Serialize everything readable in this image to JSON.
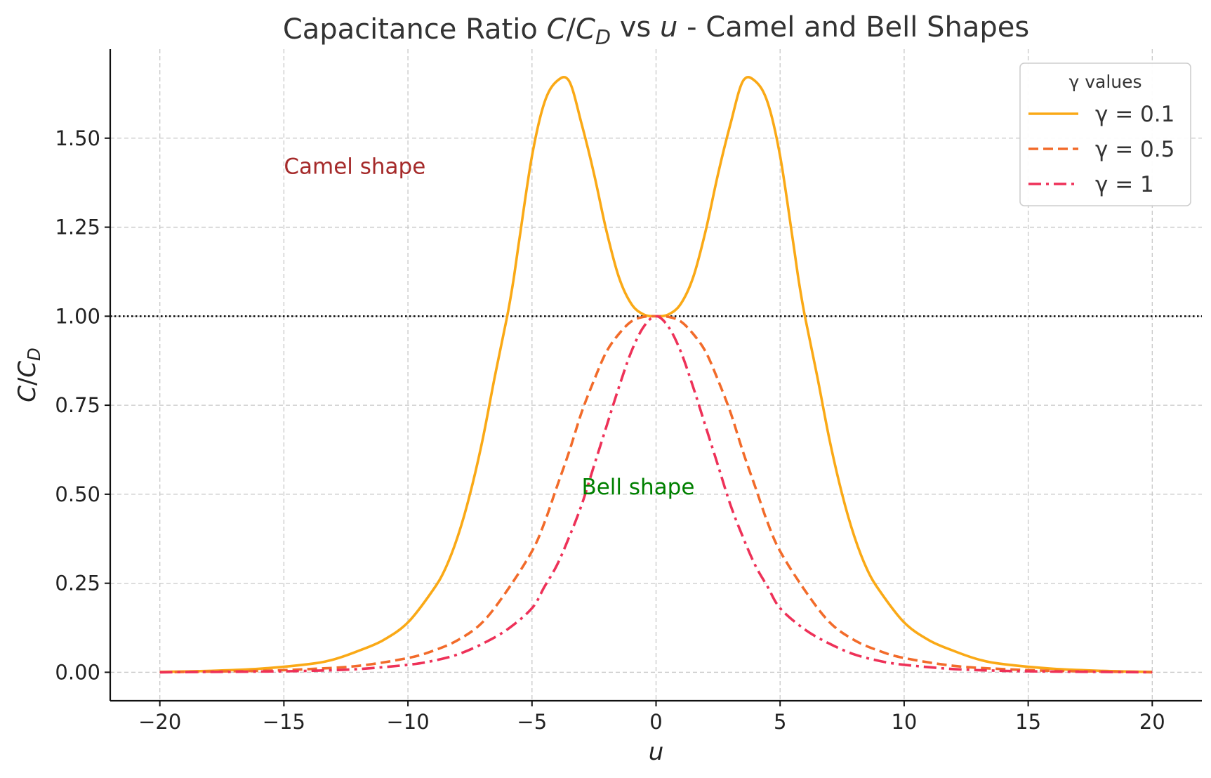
{
  "chart_data": {
    "type": "line",
    "title_parts": [
      {
        "text": "Capacitance Ratio ",
        "italic": false
      },
      {
        "text": "C",
        "italic": true
      },
      {
        "text": "/",
        "italic": false
      },
      {
        "text": "C",
        "italic": true
      },
      {
        "text": "D",
        "italic": true,
        "sub": true
      },
      {
        "text": " vs ",
        "italic": false
      },
      {
        "text": "u",
        "italic": true
      },
      {
        "text": " - Camel and Bell Shapes",
        "italic": false
      }
    ],
    "xlabel": "u",
    "ylabel_parts": [
      {
        "text": "C",
        "italic": true
      },
      {
        "text": "/",
        "italic": false
      },
      {
        "text": "C",
        "italic": true
      },
      {
        "text": "D",
        "italic": true,
        "sub": true
      }
    ],
    "xlim": [
      -22,
      22
    ],
    "ylim": [
      -0.08,
      1.75
    ],
    "x_ticks": [
      -20,
      -15,
      -10,
      -5,
      0,
      5,
      10,
      15,
      20
    ],
    "x_tick_labels": [
      "−20",
      "−15",
      "−10",
      "−5",
      "0",
      "5",
      "10",
      "15",
      "20"
    ],
    "y_ticks": [
      0,
      0.25,
      0.5,
      0.75,
      1.0,
      1.25,
      1.5
    ],
    "y_tick_labels": [
      "0.00",
      "0.25",
      "0.50",
      "0.75",
      "1.00",
      "1.25",
      "1.50"
    ],
    "grid": true,
    "reference_line": {
      "y": 1.0,
      "style": "dotted",
      "color": "#000000"
    },
    "legend": {
      "title": "γ values",
      "placement": "top-right"
    },
    "series": [
      {
        "name": "γ = 0.1",
        "color": "#FAA916",
        "line_style": "solid",
        "x": [
          -20,
          -18,
          -16,
          -14,
          -13,
          -12,
          -11,
          -10,
          -9,
          -8.5,
          -8,
          -7.5,
          -7,
          -6.5,
          -6,
          -5.75,
          -5.5,
          -5,
          -4.5,
          -4,
          -3.5,
          -3,
          -2.5,
          -2,
          -1.5,
          -1,
          -0.5,
          0,
          0.5,
          1,
          1.5,
          2,
          2.5,
          3,
          3.5,
          4,
          4.5,
          5,
          5.5,
          5.75,
          6,
          6.5,
          7,
          7.5,
          8,
          8.5,
          9,
          10,
          11,
          12,
          13,
          14,
          16,
          18,
          20
        ],
        "y": [
          0.001,
          0.004,
          0.01,
          0.023,
          0.036,
          0.06,
          0.09,
          0.14,
          0.23,
          0.29,
          0.38,
          0.5,
          0.65,
          0.83,
          1.0,
          1.1,
          1.22,
          1.45,
          1.6,
          1.66,
          1.66,
          1.54,
          1.4,
          1.24,
          1.11,
          1.035,
          1.005,
          1.0,
          1.005,
          1.035,
          1.11,
          1.24,
          1.4,
          1.54,
          1.66,
          1.66,
          1.6,
          1.45,
          1.22,
          1.1,
          1.0,
          0.83,
          0.65,
          0.5,
          0.38,
          0.29,
          0.23,
          0.14,
          0.09,
          0.06,
          0.036,
          0.023,
          0.01,
          0.004,
          0.001
        ]
      },
      {
        "name": "γ = 0.5",
        "color": "#F26B2A",
        "line_style": "dashed",
        "x": [
          -20,
          -18,
          -16,
          -14,
          -12,
          -10,
          -9,
          -8,
          -7,
          -6,
          -5,
          -4.5,
          -4,
          -3.5,
          -3,
          -2.5,
          -2,
          -1.5,
          -1,
          -0.5,
          0,
          0.5,
          1,
          1.5,
          2,
          2.5,
          3,
          3.5,
          4,
          4.5,
          5,
          6,
          7,
          8,
          9,
          10,
          12,
          14,
          16,
          18,
          20
        ],
        "y": [
          0.0,
          0.002,
          0.004,
          0.009,
          0.018,
          0.04,
          0.06,
          0.09,
          0.14,
          0.23,
          0.34,
          0.42,
          0.52,
          0.62,
          0.73,
          0.82,
          0.9,
          0.95,
          0.985,
          0.998,
          1.0,
          0.998,
          0.985,
          0.95,
          0.9,
          0.82,
          0.73,
          0.62,
          0.52,
          0.42,
          0.34,
          0.23,
          0.14,
          0.09,
          0.06,
          0.04,
          0.018,
          0.009,
          0.004,
          0.002,
          0.0
        ]
      },
      {
        "name": "γ = 1",
        "color": "#EE3158",
        "line_style": "dashdot",
        "x": [
          -20,
          -18,
          -16,
          -14,
          -12,
          -10,
          -9,
          -8,
          -7,
          -6,
          -5,
          -4.5,
          -4,
          -3.5,
          -3,
          -2.5,
          -2,
          -1.5,
          -1,
          -0.5,
          0,
          0.5,
          1,
          1.5,
          2,
          2.5,
          3,
          3.5,
          4,
          4.5,
          5,
          6,
          7,
          8,
          9,
          10,
          12,
          14,
          16,
          18,
          20
        ],
        "y": [
          0.0,
          0.001,
          0.002,
          0.004,
          0.009,
          0.021,
          0.032,
          0.05,
          0.08,
          0.12,
          0.18,
          0.24,
          0.3,
          0.38,
          0.47,
          0.58,
          0.69,
          0.8,
          0.9,
          0.97,
          1.0,
          0.97,
          0.9,
          0.8,
          0.69,
          0.58,
          0.47,
          0.38,
          0.3,
          0.24,
          0.18,
          0.12,
          0.08,
          0.05,
          0.032,
          0.021,
          0.009,
          0.004,
          0.002,
          0.001,
          0.0
        ]
      }
    ],
    "annotations": [
      {
        "text": "Camel shape",
        "x": -15,
        "y": 1.4,
        "color": "#A52A2A"
      },
      {
        "text": "Bell shape",
        "x": -3,
        "y": 0.5,
        "color": "#008000"
      }
    ]
  }
}
